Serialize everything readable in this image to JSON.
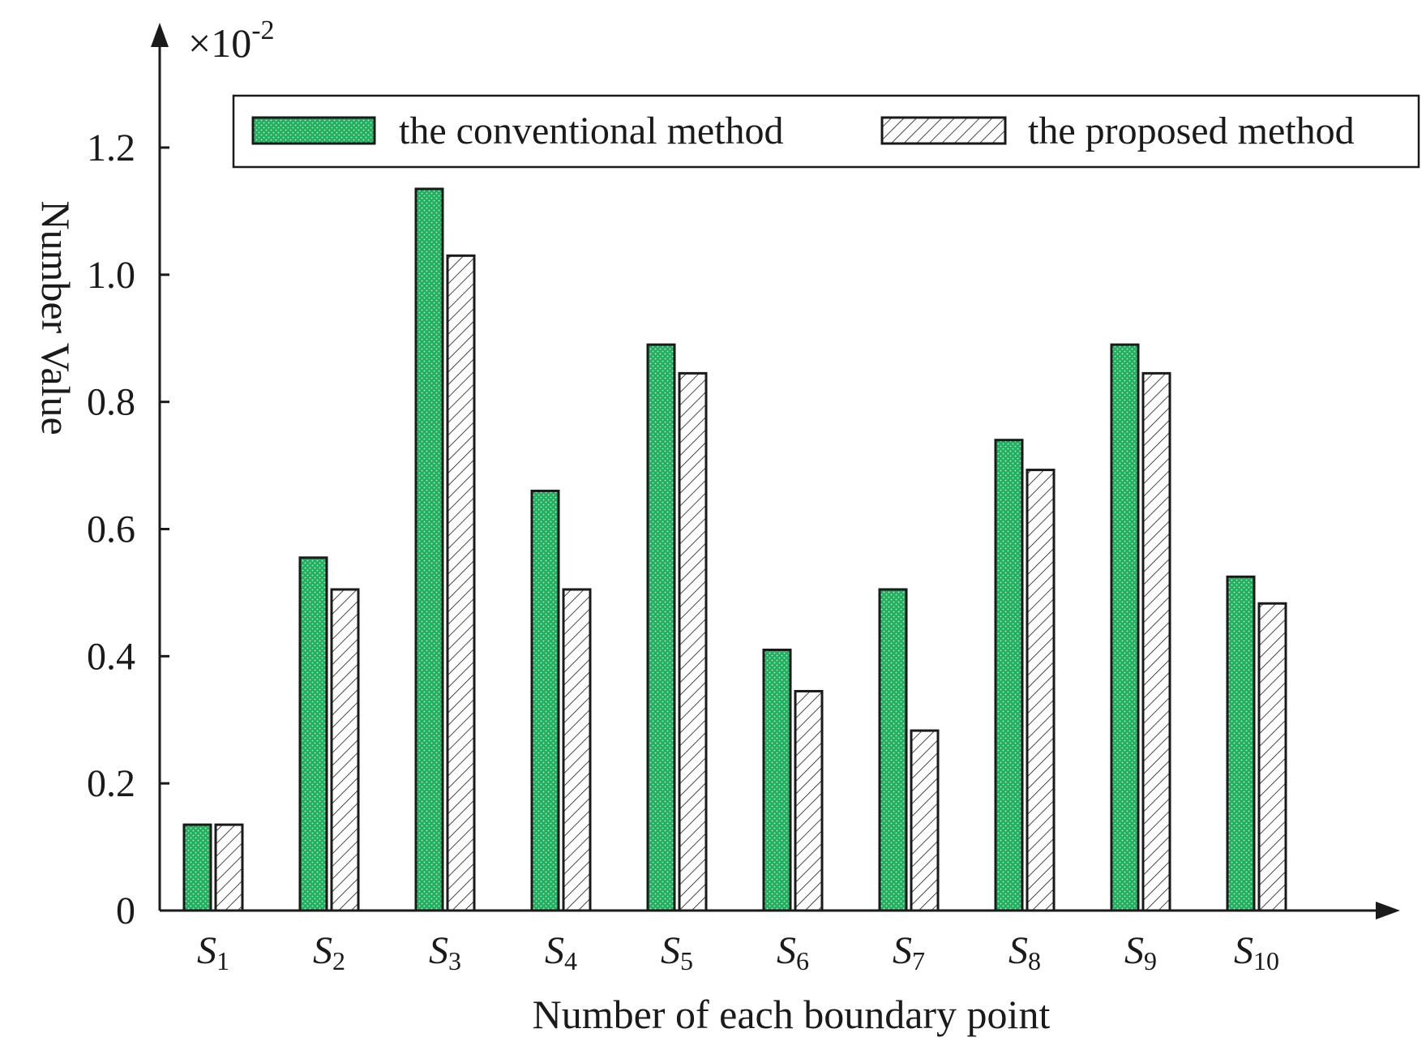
{
  "chart_data": {
    "type": "bar",
    "categories": [
      "S1",
      "S2",
      "S3",
      "S4",
      "S5",
      "S6",
      "S7",
      "S8",
      "S9",
      "S10"
    ],
    "category_labels": [
      {
        "base": "S",
        "sub": "1"
      },
      {
        "base": "S",
        "sub": "2"
      },
      {
        "base": "S",
        "sub": "3"
      },
      {
        "base": "S",
        "sub": "4"
      },
      {
        "base": "S",
        "sub": "5"
      },
      {
        "base": "S",
        "sub": "6"
      },
      {
        "base": "S",
        "sub": "7"
      },
      {
        "base": "S",
        "sub": "8"
      },
      {
        "base": "S",
        "sub": "9"
      },
      {
        "base": "S",
        "sub": "10"
      }
    ],
    "series": [
      {
        "name": "the conventional method",
        "color": "#22b060",
        "pattern": "dotted",
        "values": [
          0.135,
          0.555,
          1.135,
          0.66,
          0.89,
          0.41,
          0.505,
          0.74,
          0.89,
          0.525
        ]
      },
      {
        "name": "the proposed method",
        "color": "#ffffff",
        "pattern": "hatched",
        "values": [
          0.135,
          0.505,
          1.03,
          0.505,
          0.845,
          0.345,
          0.283,
          0.693,
          0.845,
          0.483
        ]
      }
    ],
    "title": "",
    "xlabel": "Number of each boundary point",
    "ylabel": "Number Value",
    "y_multiplier_label": "×10",
    "y_multiplier_exp": "-2",
    "ylim": [
      0,
      1.2
    ],
    "yticks": [
      0,
      0.2,
      0.4,
      0.6,
      0.8,
      1.0,
      1.2
    ],
    "ytick_labels": [
      "0",
      "0.2",
      "0.4",
      "0.6",
      "0.8",
      "1.0",
      "1.2"
    ],
    "grid": false,
    "legend_position": "top"
  }
}
